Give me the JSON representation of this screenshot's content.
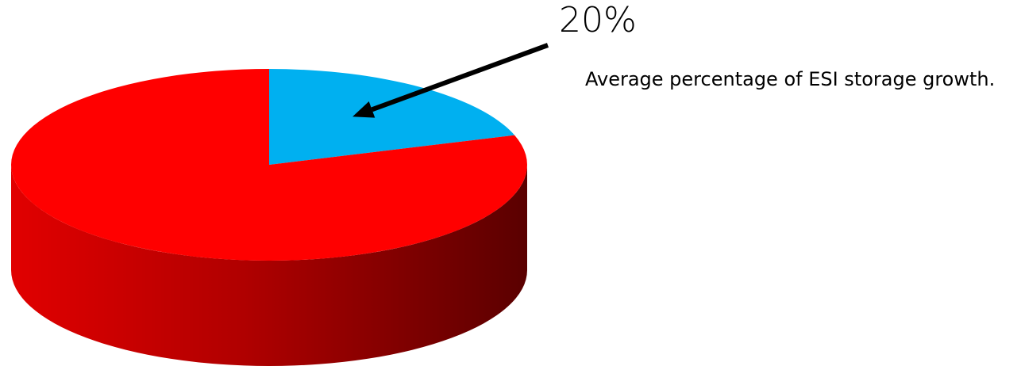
{
  "chart_data": {
    "type": "pie",
    "style": "3d",
    "slices": [
      {
        "label": "",
        "value": 20,
        "color": "#00b0f0"
      },
      {
        "label": "",
        "value": 80,
        "color": "#ff0000"
      }
    ],
    "annotations": [
      {
        "text": "20%",
        "points_to_slice": 0
      },
      {
        "text": "Average percentage of ESI storage growth."
      }
    ],
    "colors": {
      "highlight": "#00b0f0",
      "base": "#ff0000",
      "side_dark": "#5a0000"
    }
  },
  "callout": {
    "value": "20%",
    "description": "Average percentage of ESI storage growth."
  }
}
